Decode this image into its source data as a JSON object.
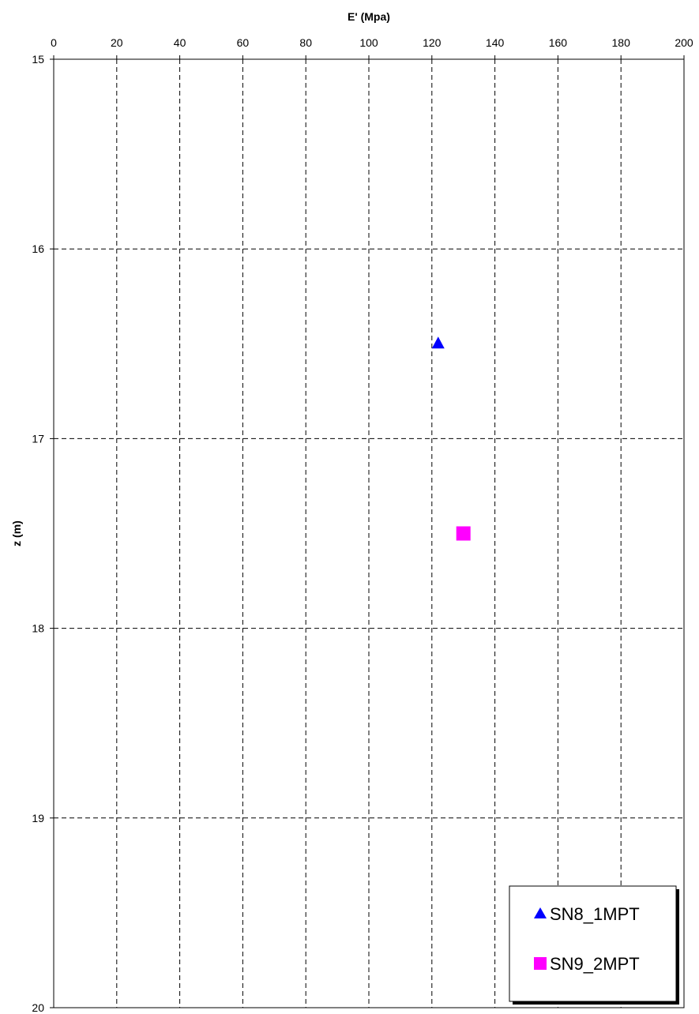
{
  "chart_data": {
    "type": "scatter",
    "xlabel": "E' (Mpa)",
    "ylabel": "z (m)",
    "xlim": [
      0,
      200
    ],
    "ylim": [
      15,
      20
    ],
    "x_axis_position": "top",
    "y_axis_inverted": true,
    "xticks": [
      0,
      20,
      40,
      60,
      80,
      100,
      120,
      140,
      160,
      180,
      200
    ],
    "yticks": [
      15,
      16,
      17,
      18,
      19,
      20
    ],
    "grid": true,
    "grid_style": "dashed",
    "legend_position": "bottom-right",
    "series": [
      {
        "name": "SN8_1MPT",
        "marker": "triangle",
        "color": "#0000ff",
        "points": [
          {
            "x": 122,
            "y": 16.5
          }
        ]
      },
      {
        "name": "SN9_2MPT",
        "marker": "square",
        "color": "#ff00ff",
        "points": [
          {
            "x": 130,
            "y": 17.5
          }
        ]
      }
    ]
  }
}
